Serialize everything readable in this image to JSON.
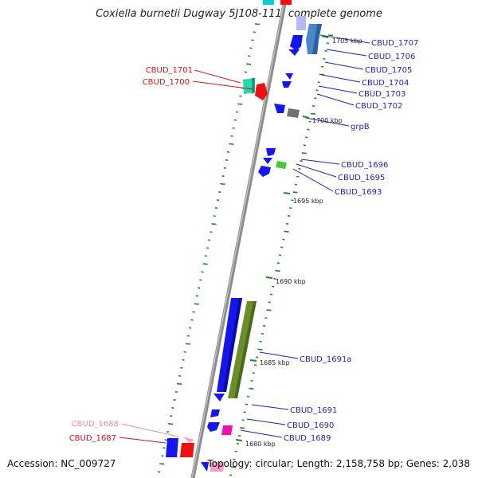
{
  "title": "Coxiella burnetii Dugway 5J108-111, complete genome",
  "accession_text": "Accession: NC_009727",
  "topology_text": "Topology: circular; Length: 2,158,758 bp; Genes: 2,038",
  "kbp_ticks": [
    {
      "label": "1705 kbp"
    },
    {
      "label": "1700 kbp"
    },
    {
      "label": "1695 kbp"
    },
    {
      "label": "1690 kbp"
    },
    {
      "label": "1685 kbp"
    },
    {
      "label": "1680 kbp"
    }
  ],
  "gene_labels_right": [
    {
      "label": "CBUD_1707",
      "color": "#1f1fbf"
    },
    {
      "label": "CBUD_1706",
      "color": "#1f1fbf"
    },
    {
      "label": "CBUD_1705",
      "color": "#1f1fbf"
    },
    {
      "label": "CBUD_1704",
      "color": "#1f1fbf"
    },
    {
      "label": "CBUD_1703",
      "color": "#1f1fbf"
    },
    {
      "label": "CBUD_1702",
      "color": "#1f1fbf"
    },
    {
      "label": "grpB",
      "color": "#1f1fbf"
    },
    {
      "label": "CBUD_1696",
      "color": "#1f1fbf"
    },
    {
      "label": "CBUD_1695",
      "color": "#1f1fbf"
    },
    {
      "label": "CBUD_1693",
      "color": "#1f1fbf"
    },
    {
      "label": "CBUD_1691a",
      "color": "#1f1fbf"
    },
    {
      "label": "CBUD_1691",
      "color": "#1f1fbf"
    },
    {
      "label": "CBUD_1690",
      "color": "#1f1fbf"
    },
    {
      "label": "CBUD_1689",
      "color": "#1f1fbf"
    }
  ],
  "gene_labels_left": [
    {
      "label": "CBUD_1701",
      "color": "#dd1111"
    },
    {
      "label": "CBUD_1700",
      "color": "#dd1111"
    },
    {
      "label": "CBUD_1688",
      "color": "#f08cb0"
    },
    {
      "label": "CBUD_1687",
      "color": "#dd1111"
    }
  ],
  "colors": {
    "backbone": "#8c8c8c",
    "tick_green": "#1d8a1d",
    "gene_blue": "#1515f0",
    "gene_steel": "#4a86c8",
    "gene_red": "#ee1111",
    "gene_teal": "#22ddaa",
    "gene_gray": "#707070",
    "gene_green": "#44cc33",
    "gene_olive": "#6a8f2a",
    "gene_magenta": "#ee11aa",
    "gene_pink": "#f5a0c8",
    "gene_cyan": "#11cccc"
  }
}
